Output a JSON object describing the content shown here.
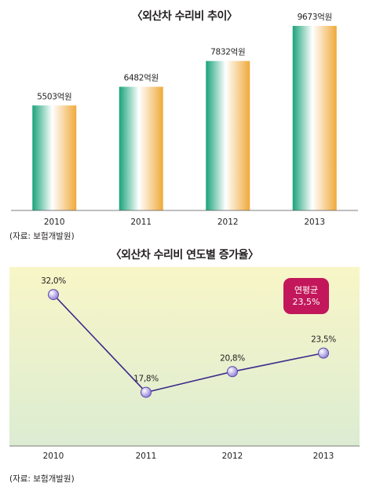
{
  "chart_data": [
    {
      "type": "bar",
      "title": "〈외산차 수리비 추이〉",
      "categories": [
        "2010",
        "2011",
        "2012",
        "2013"
      ],
      "values": [
        5503,
        6482,
        7832,
        9673
      ],
      "value_labels": [
        "5503억원",
        "6482억원",
        "7832억원",
        "9673억원"
      ],
      "unit": "억원",
      "ylim": [
        0,
        10700
      ],
      "grid": false,
      "colors": {
        "green": "#1aa37a",
        "white": "#ffffff",
        "orange": "#f0a93a"
      },
      "source": "(자료: 보험개발원)"
    },
    {
      "type": "line",
      "title": "〈외산차 수리비 연도별 증가율〉",
      "categories": [
        "2010",
        "2011",
        "2012",
        "2013"
      ],
      "values": [
        32.0,
        17.8,
        20.8,
        23.5
      ],
      "value_labels": [
        "32,0%",
        "17,8%",
        "20,8%",
        "23,5%"
      ],
      "unit": "%",
      "ylim": [
        10,
        36
      ],
      "grid": false,
      "annotation": {
        "line1": "연평균",
        "line2": "23,5%"
      },
      "colors": {
        "line": "#3b2a8c",
        "marker": "#8c7ad6",
        "panel_top": "#f8f6c7",
        "panel_bottom": "#dcecd2",
        "badge": "#c2185b"
      },
      "source": "(자료: 보험개발원)"
    }
  ]
}
